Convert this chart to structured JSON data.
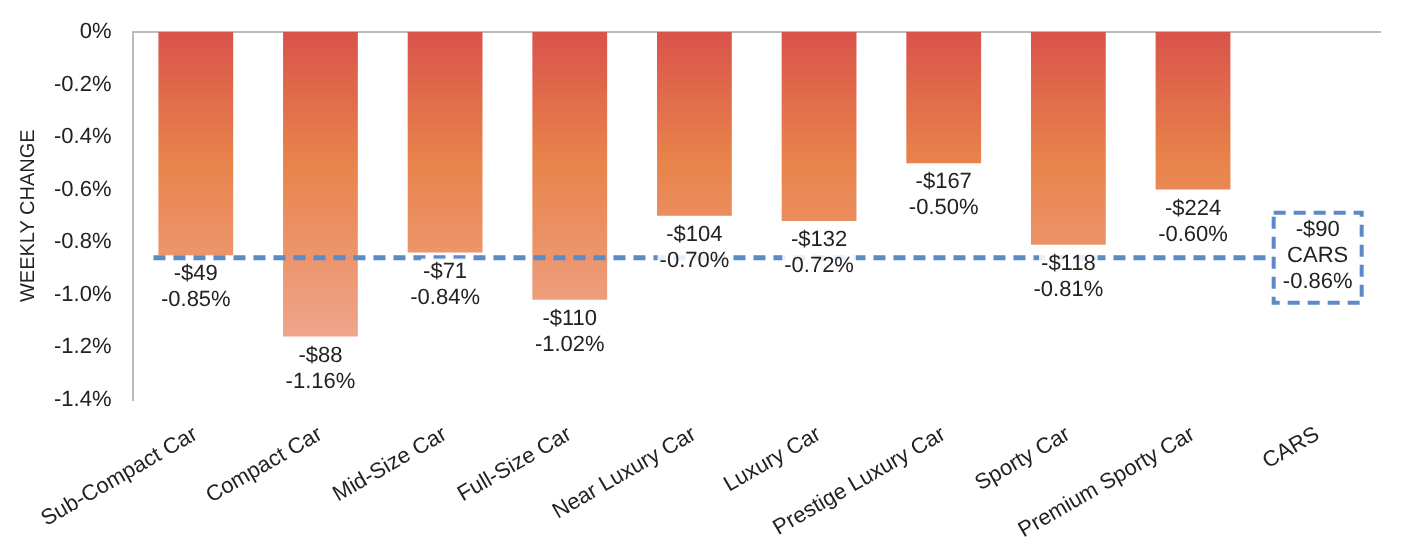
{
  "chart_data": {
    "type": "bar",
    "ylabel": "WEEKLY CHANGE",
    "categories": [
      "Sub-Compact Car",
      "Compact Car",
      "Mid-Size Car",
      "Full-Size Car",
      "Near Luxury Car",
      "Luxury Car",
      "Prestige Luxury Car",
      "Sporty Car",
      "Premium Sporty Car",
      "CARS"
    ],
    "values": [
      -0.85,
      -1.16,
      -0.84,
      -1.02,
      -0.7,
      -0.72,
      -0.5,
      -0.81,
      -0.6,
      null
    ],
    "value_labels": [
      "-$49\n-0.85%",
      "-$88\n-1.16%",
      "-$71\n-0.84%",
      "-$110\n-1.02%",
      "-$104\n-0.70%",
      "-$132\n-0.72%",
      "-$167\n-0.50%",
      "-$118\n-0.81%",
      "-$224\n-0.60%",
      null
    ],
    "color": "#e8834a",
    "ylim": [
      -1.4,
      0
    ],
    "yticks": [
      {
        "value": 0,
        "label": "0%"
      },
      {
        "value": -0.2,
        "label": "-0.2%"
      },
      {
        "value": -0.4,
        "label": "-0.4%"
      },
      {
        "value": -0.6,
        "label": "-0.6%"
      },
      {
        "value": -0.8,
        "label": "-0.8%"
      },
      {
        "value": -1.0,
        "label": "-1.0%"
      },
      {
        "value": -1.2,
        "label": "-1.2%"
      },
      {
        "value": -1.4,
        "label": "-1.4%"
      }
    ],
    "ref_lines": [
      {
        "axis": "y",
        "value": -0.86,
        "label": "-$90\nCARS\n-0.86%",
        "color": "#5b8ac6",
        "line_style": "dashed"
      }
    ],
    "grid": false,
    "legend": false
  }
}
